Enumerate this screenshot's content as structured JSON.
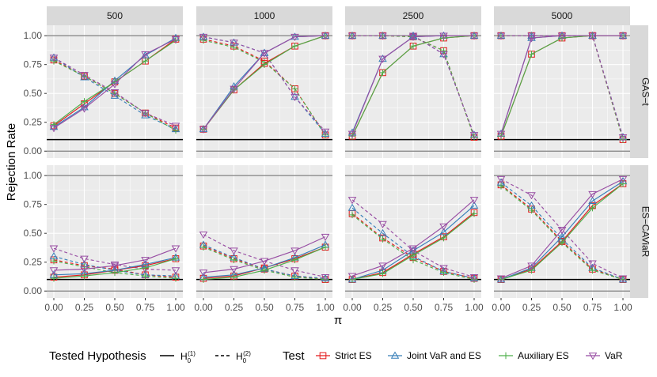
{
  "chart_data": {
    "type": "line",
    "ylabel": "Rejection Rate",
    "xlabel": "π",
    "x": [
      0,
      0.25,
      0.5,
      0.75,
      1.0
    ],
    "x_tick_labels": [
      "0.00",
      "0.25",
      "0.50",
      "0.75",
      "1.00"
    ],
    "y_tick_labels": [
      "0.00",
      "0.25",
      "0.50",
      "0.75",
      "1.00"
    ],
    "ylim": [
      -0.06,
      1.09
    ],
    "reference_lines": [
      0.1
    ],
    "col_facets": [
      "500",
      "1000",
      "2500",
      "5000"
    ],
    "row_facets": [
      "GAS−t",
      "ES−CAViaR"
    ],
    "colors": {
      "strict": "#e41a1c",
      "joint": "#377eb8",
      "aux": "#4daf4a",
      "var": "#984ea3",
      "panel_bg": "#ebebeb",
      "strip_bg": "#d9d9d9",
      "grid": "#ffffff"
    },
    "legend": {
      "hyp_title": "Tested Hypothesis",
      "hyp_solid": "H",
      "hyp_solid_sup": "(1)",
      "hyp_dashed": "H",
      "hyp_dashed_sup": "(2)",
      "hyp_sub": "0",
      "test_title": "Test",
      "test_strict": "Strict ES",
      "test_joint": "Joint VaR and ES",
      "test_aux": "Auxiliary ES",
      "test_var": "VaR"
    },
    "panels": [
      {
        "row": 0,
        "col": 0,
        "h1": {
          "strict": [
            0.22,
            0.41,
            0.6,
            0.78,
            0.97
          ],
          "joint": [
            0.21,
            0.38,
            0.61,
            0.83,
            0.98
          ],
          "aux": [
            0.23,
            0.43,
            0.6,
            0.78,
            0.96
          ],
          "var": [
            0.2,
            0.37,
            0.58,
            0.84,
            0.97
          ]
        },
        "h2": {
          "strict": [
            0.79,
            0.65,
            0.5,
            0.33,
            0.2
          ],
          "joint": [
            0.81,
            0.64,
            0.48,
            0.31,
            0.19
          ],
          "aux": [
            0.78,
            0.65,
            0.5,
            0.33,
            0.18
          ],
          "var": [
            0.81,
            0.66,
            0.51,
            0.33,
            0.22
          ]
        }
      },
      {
        "row": 0,
        "col": 1,
        "h1": {
          "strict": [
            0.19,
            0.53,
            0.76,
            0.91,
            1.0
          ],
          "joint": [
            0.19,
            0.56,
            0.85,
            0.99,
            1.0
          ],
          "aux": [
            0.19,
            0.53,
            0.75,
            0.91,
            1.0
          ],
          "var": [
            0.19,
            0.54,
            0.85,
            0.99,
            1.0
          ]
        },
        "h2": {
          "strict": [
            0.97,
            0.91,
            0.78,
            0.54,
            0.14
          ],
          "joint": [
            0.99,
            0.94,
            0.85,
            0.47,
            0.15
          ],
          "aux": [
            0.96,
            0.9,
            0.77,
            0.54,
            0.14
          ],
          "var": [
            0.99,
            0.94,
            0.85,
            0.47,
            0.17
          ]
        }
      },
      {
        "row": 0,
        "col": 2,
        "h1": {
          "strict": [
            0.13,
            0.68,
            0.91,
            0.98,
            1.0
          ],
          "joint": [
            0.16,
            0.8,
            0.99,
            1.0,
            1.0
          ],
          "aux": [
            0.13,
            0.68,
            0.91,
            0.98,
            1.0
          ],
          "var": [
            0.15,
            0.8,
            0.99,
            1.0,
            1.0
          ]
        },
        "h2": {
          "strict": [
            1.0,
            1.0,
            0.99,
            0.87,
            0.12
          ],
          "joint": [
            1.0,
            1.0,
            1.0,
            0.84,
            0.14
          ],
          "aux": [
            1.0,
            1.0,
            0.99,
            0.87,
            0.12
          ],
          "var": [
            1.0,
            1.0,
            1.0,
            0.84,
            0.14
          ]
        }
      },
      {
        "row": 0,
        "col": 3,
        "h1": {
          "strict": [
            0.13,
            0.84,
            0.98,
            1.0,
            1.0
          ],
          "joint": [
            0.15,
            0.98,
            1.0,
            1.0,
            1.0
          ],
          "aux": [
            0.13,
            0.84,
            0.98,
            1.0,
            1.0
          ],
          "var": [
            0.15,
            0.98,
            1.0,
            1.0,
            1.0
          ]
        },
        "h2": {
          "strict": [
            1.0,
            1.0,
            1.0,
            1.0,
            0.1
          ],
          "joint": [
            1.0,
            1.0,
            1.0,
            1.0,
            0.12
          ],
          "aux": [
            1.0,
            1.0,
            1.0,
            1.0,
            0.1
          ],
          "var": [
            1.0,
            1.0,
            1.0,
            1.0,
            0.12
          ]
        }
      },
      {
        "row": 1,
        "col": 0,
        "h1": {
          "strict": [
            0.12,
            0.14,
            0.18,
            0.22,
            0.28
          ],
          "joint": [
            0.14,
            0.15,
            0.18,
            0.23,
            0.29
          ],
          "aux": [
            0.11,
            0.13,
            0.16,
            0.2,
            0.28
          ],
          "var": [
            0.18,
            0.19,
            0.22,
            0.27,
            0.37
          ]
        },
        "h2": {
          "strict": [
            0.27,
            0.22,
            0.19,
            0.14,
            0.12
          ],
          "joint": [
            0.3,
            0.23,
            0.18,
            0.14,
            0.13
          ],
          "aux": [
            0.26,
            0.21,
            0.16,
            0.13,
            0.11
          ],
          "var": [
            0.37,
            0.28,
            0.23,
            0.19,
            0.18
          ]
        }
      },
      {
        "row": 1,
        "col": 1,
        "h1": {
          "strict": [
            0.11,
            0.13,
            0.2,
            0.28,
            0.38
          ],
          "joint": [
            0.12,
            0.14,
            0.2,
            0.29,
            0.4
          ],
          "aux": [
            0.1,
            0.12,
            0.18,
            0.27,
            0.38
          ],
          "var": [
            0.16,
            0.19,
            0.26,
            0.35,
            0.47
          ]
        },
        "h2": {
          "strict": [
            0.39,
            0.28,
            0.19,
            0.13,
            0.1
          ],
          "joint": [
            0.4,
            0.29,
            0.19,
            0.13,
            0.11
          ],
          "aux": [
            0.38,
            0.27,
            0.18,
            0.12,
            0.1
          ],
          "var": [
            0.49,
            0.35,
            0.26,
            0.18,
            0.12
          ]
        }
      },
      {
        "row": 1,
        "col": 2,
        "h1": {
          "strict": [
            0.1,
            0.16,
            0.32,
            0.47,
            0.68
          ],
          "joint": [
            0.1,
            0.18,
            0.35,
            0.51,
            0.74
          ],
          "aux": [
            0.1,
            0.15,
            0.31,
            0.46,
            0.67
          ],
          "var": [
            0.13,
            0.22,
            0.37,
            0.56,
            0.79
          ]
        },
        "h2": {
          "strict": [
            0.67,
            0.46,
            0.29,
            0.17,
            0.11
          ],
          "joint": [
            0.72,
            0.5,
            0.3,
            0.17,
            0.11
          ],
          "aux": [
            0.66,
            0.45,
            0.27,
            0.16,
            0.1
          ],
          "var": [
            0.79,
            0.58,
            0.35,
            0.2,
            0.12
          ]
        }
      },
      {
        "row": 1,
        "col": 3,
        "h1": {
          "strict": [
            0.1,
            0.19,
            0.43,
            0.74,
            0.93
          ],
          "joint": [
            0.1,
            0.2,
            0.47,
            0.78,
            0.95
          ],
          "aux": [
            0.1,
            0.18,
            0.42,
            0.72,
            0.93
          ],
          "var": [
            0.11,
            0.22,
            0.53,
            0.84,
            0.97
          ]
        },
        "h2": {
          "strict": [
            0.92,
            0.71,
            0.43,
            0.19,
            0.1
          ],
          "joint": [
            0.94,
            0.74,
            0.45,
            0.2,
            0.1
          ],
          "aux": [
            0.91,
            0.7,
            0.42,
            0.18,
            0.1
          ],
          "var": [
            0.97,
            0.83,
            0.53,
            0.24,
            0.11
          ]
        }
      }
    ]
  }
}
